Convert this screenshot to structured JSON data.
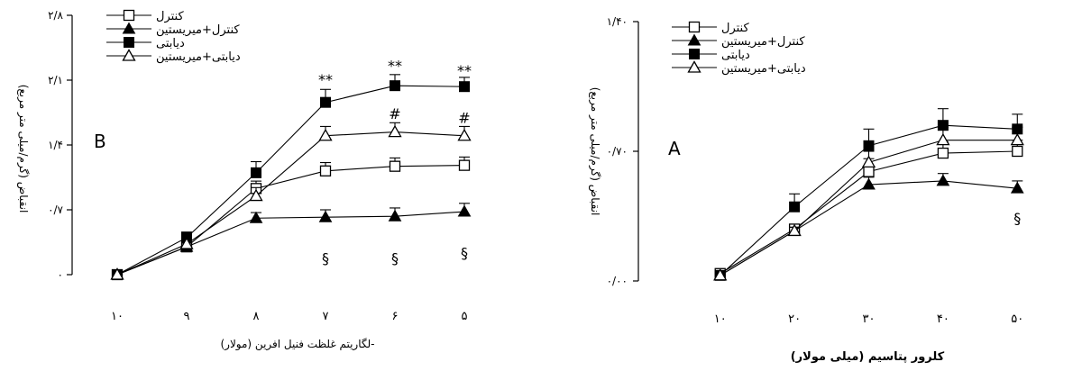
{
  "chart_data": [
    {
      "type": "line",
      "panel_letter": "B",
      "xlabel": "-لگاریتم غلظت فنیل افرین (مولار)",
      "ylabel": "انقباض (گرم/میلی متر مربع)",
      "categories": [
        "۱۰",
        "۹",
        "۸",
        "۷",
        "۶",
        "۵"
      ],
      "x": [
        10,
        9,
        8,
        7,
        6,
        5
      ],
      "xlim": [
        10,
        5
      ],
      "ylim": [
        0,
        2.8
      ],
      "yticks": [
        0,
        0.7,
        1.4,
        2.1,
        2.8
      ],
      "ytick_labels": [
        "۰",
        "۰/۷",
        "۱/۴",
        "۲/۱",
        "۲/۸"
      ],
      "legend_position": "top-left",
      "series": [
        {
          "name": "کنترل",
          "marker": "open-square",
          "values": [
            0.0,
            0.3,
            0.93,
            1.12,
            1.17,
            1.18
          ],
          "errors": [
            0,
            0.05,
            0.08,
            0.09,
            0.09,
            0.09
          ]
        },
        {
          "name": "کنترل+میریستین",
          "marker": "filled-triangle",
          "values": [
            0.0,
            0.3,
            0.61,
            0.62,
            0.63,
            0.68
          ],
          "errors": [
            0,
            0.04,
            0.06,
            0.08,
            0.09,
            0.09
          ]
        },
        {
          "name": "دیابتی",
          "marker": "filled-square",
          "values": [
            0.0,
            0.4,
            1.1,
            1.86,
            2.04,
            2.03
          ],
          "errors": [
            0,
            0.06,
            0.12,
            0.14,
            0.12,
            0.1
          ]
        },
        {
          "name": "دیابتی+میریستین",
          "marker": "open-triangle",
          "values": [
            0.0,
            0.33,
            0.85,
            1.5,
            1.54,
            1.5
          ],
          "errors": [
            0,
            0.05,
            0.09,
            0.1,
            0.1,
            0.1
          ]
        }
      ],
      "annotations": [
        {
          "text": "**",
          "x": 7,
          "y": 2.05
        },
        {
          "text": "**",
          "x": 6,
          "y": 2.2
        },
        {
          "text": "**",
          "x": 5,
          "y": 2.15
        },
        {
          "text": "#",
          "x": 6,
          "y": 1.68
        },
        {
          "text": "#",
          "x": 5,
          "y": 1.64
        },
        {
          "text": "§",
          "x": 7,
          "y": 0.12
        },
        {
          "text": "§",
          "x": 6,
          "y": 0.12
        },
        {
          "text": "§",
          "x": 5,
          "y": 0.18
        }
      ]
    },
    {
      "type": "line",
      "panel_letter": "A",
      "xlabel": "کلرور پتاسیم (میلی مولار)",
      "ylabel": "انقباض (گرم/میلی متر مربع)",
      "categories": [
        "۱۰",
        "۲۰",
        "۳۰",
        "۴۰",
        "۵۰"
      ],
      "x": [
        10,
        20,
        30,
        40,
        50
      ],
      "xlim": [
        7,
        53
      ],
      "ylim": [
        0,
        1.4
      ],
      "yticks": [
        0,
        0.7,
        1.4
      ],
      "ytick_labels": [
        "۰/۰۰",
        "۰/۷۰",
        "۱/۴۰"
      ],
      "legend_position": "top-left",
      "series": [
        {
          "name": "کنترل",
          "marker": "open-square",
          "values": [
            0.04,
            0.28,
            0.59,
            0.69,
            0.7
          ],
          "errors": [
            0,
            0.02,
            0.07,
            0.06,
            0.06
          ]
        },
        {
          "name": "کنترل+میریستین",
          "marker": "filled-triangle",
          "values": [
            0.03,
            0.27,
            0.52,
            0.54,
            0.5
          ],
          "errors": [
            0,
            0.02,
            0.04,
            0.04,
            0.04
          ]
        },
        {
          "name": "دیابتی",
          "marker": "filled-square",
          "values": [
            0.03,
            0.4,
            0.73,
            0.84,
            0.82
          ],
          "errors": [
            0,
            0.07,
            0.09,
            0.09,
            0.08
          ]
        },
        {
          "name": "دیابتی+میریستین",
          "marker": "open-triangle",
          "values": [
            0.03,
            0.27,
            0.64,
            0.76,
            0.76
          ],
          "errors": [
            0,
            0.02,
            0.06,
            0.07,
            0.07
          ]
        }
      ],
      "annotations": [
        {
          "text": "§",
          "x": 50,
          "y": 0.31
        }
      ]
    }
  ]
}
